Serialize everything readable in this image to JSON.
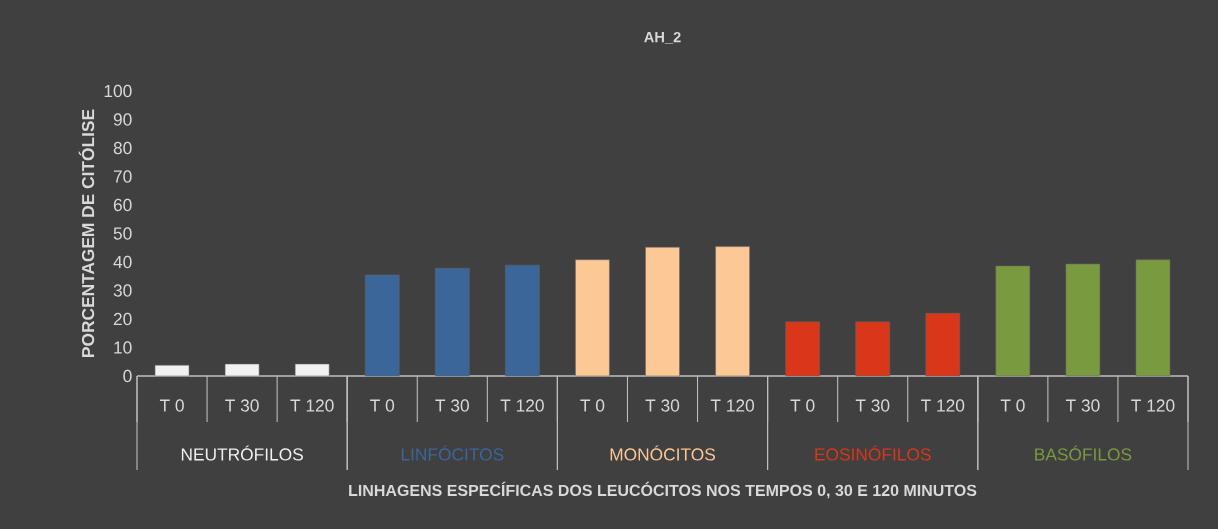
{
  "chart_data": {
    "type": "bar",
    "title": "AH_2",
    "xlabel": "LINHAGENS ESPECÍFICAS DOS LEUCÓCITOS NOS TEMPOS 0, 30 E 120 MINUTOS",
    "ylabel": "PORCENTAGEM DE CITÓLISE",
    "categories": [
      "T 0",
      "T 30",
      "T 120",
      "T 0",
      "T 30",
      "T 120",
      "T 0",
      "T 30",
      "T 120",
      "T 0",
      "T 30",
      "T 120",
      "T 0",
      "T 30",
      "T 120"
    ],
    "series": [
      {
        "name": "NEUTRÓFILOS",
        "color": "#f2f2f2",
        "values": [
          3.8,
          4.2,
          4.2,
          null,
          null,
          null,
          null,
          null,
          null,
          null,
          null,
          null,
          null,
          null,
          null
        ]
      },
      {
        "name": "LINFÓCITOS",
        "color": "#3a6699",
        "values": [
          null,
          null,
          null,
          35.4,
          37.8,
          38.9,
          null,
          null,
          null,
          null,
          null,
          null,
          null,
          null,
          null
        ]
      },
      {
        "name": "MONÓCITOS",
        "color": "#fcc896",
        "values": [
          null,
          null,
          null,
          null,
          null,
          null,
          40.8,
          45.2,
          45.4,
          null,
          null,
          null,
          null,
          null,
          null
        ]
      },
      {
        "name": "EOSINÓFILOS",
        "color": "#d9361a",
        "values": [
          null,
          null,
          null,
          null,
          null,
          null,
          null,
          null,
          null,
          19.0,
          19.0,
          22.0,
          null,
          null,
          null
        ]
      },
      {
        "name": "BASÓFILOS",
        "color": "#7a9a40",
        "values": [
          null,
          null,
          null,
          null,
          null,
          null,
          null,
          null,
          null,
          null,
          null,
          null,
          38.6,
          39.3,
          40.8
        ]
      }
    ],
    "ylim": [
      0,
      100
    ],
    "yticks": [
      0,
      10,
      20,
      30,
      40,
      50,
      60,
      70,
      80,
      90,
      100
    ]
  }
}
